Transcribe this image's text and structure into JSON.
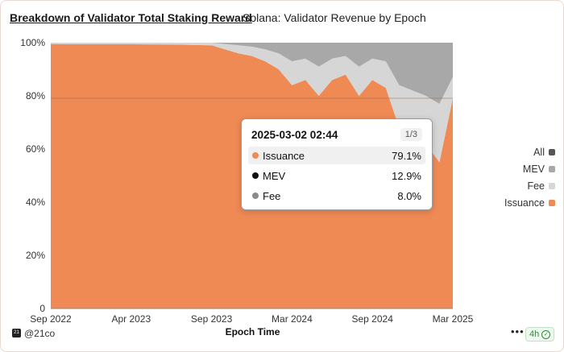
{
  "header": {
    "title": "Breakdown of Validator Total Staking Reward",
    "subtitle": "Solana: Validator Revenue by Epoch"
  },
  "colors": {
    "issuance": "#ef8a55",
    "fee": "#d6d6d6",
    "mev": "#a8a8a8",
    "all": "#555555",
    "background": "#ffffff"
  },
  "chart_data": {
    "type": "area",
    "stacked": true,
    "normalized": true,
    "xlabel": "Epoch Time",
    "ylabel": "",
    "ylim": [
      0,
      100
    ],
    "y_ticks": [
      "0",
      "20%",
      "40%",
      "60%",
      "80%",
      "100%"
    ],
    "x_ticks": [
      "Sep 2022",
      "Apr 2023",
      "Sep 2023",
      "Mar 2024",
      "Sep 2024",
      "Mar 2025"
    ],
    "x_range": [
      "2022-09",
      "2025-03"
    ],
    "grid": false,
    "legend_placement": "right",
    "x": [
      "2022-09",
      "2022-12",
      "2023-03",
      "2023-06",
      "2023-09",
      "2023-10",
      "2023-11",
      "2023-12",
      "2024-01",
      "2024-02",
      "2024-03",
      "2024-04",
      "2024-05",
      "2024-06",
      "2024-07",
      "2024-08",
      "2024-09",
      "2024-10",
      "2024-11",
      "2024-12",
      "2025-01",
      "2025-02",
      "2025-03"
    ],
    "series": [
      {
        "name": "Issuance",
        "values": [
          99.5,
          99.4,
          99.4,
          99.3,
          99.0,
          97.5,
          96.0,
          95.0,
          93.0,
          90.0,
          84.0,
          86.0,
          80.0,
          86.0,
          88.0,
          80.0,
          86.0,
          83.0,
          68.0,
          65.0,
          62.0,
          55.0,
          79.1
        ]
      },
      {
        "name": "Fee",
        "values": [
          0.5,
          0.6,
          0.6,
          0.7,
          1.0,
          2.0,
          3.0,
          3.5,
          4.5,
          6.0,
          9.0,
          8.0,
          11.0,
          8.0,
          7.0,
          11.0,
          8.0,
          10.0,
          16.0,
          17.0,
          18.0,
          22.0,
          8.0
        ]
      },
      {
        "name": "MEV",
        "values": [
          0.0,
          0.0,
          0.0,
          0.0,
          0.0,
          0.5,
          1.0,
          1.5,
          2.5,
          4.0,
          7.0,
          6.0,
          9.0,
          6.0,
          5.0,
          9.0,
          6.0,
          7.0,
          16.0,
          18.0,
          20.0,
          23.0,
          12.9
        ]
      }
    ],
    "legend": [
      "All",
      "MEV",
      "Fee",
      "Issuance"
    ],
    "crosshair_y": 79.1
  },
  "tooltip": {
    "date": "2025-03-02 02:44",
    "page": "1/3",
    "rows": [
      {
        "label": "Issuance",
        "value": "79.1%",
        "color": "#ef8a55"
      },
      {
        "label": "MEV",
        "value": "12.9%",
        "color": "#111111"
      },
      {
        "label": "Fee",
        "value": "8.0%",
        "color": "#8a8a8a"
      }
    ]
  },
  "footer": {
    "handle": "@21co",
    "logo_text": "21",
    "more": "•••",
    "badge": "4h"
  }
}
